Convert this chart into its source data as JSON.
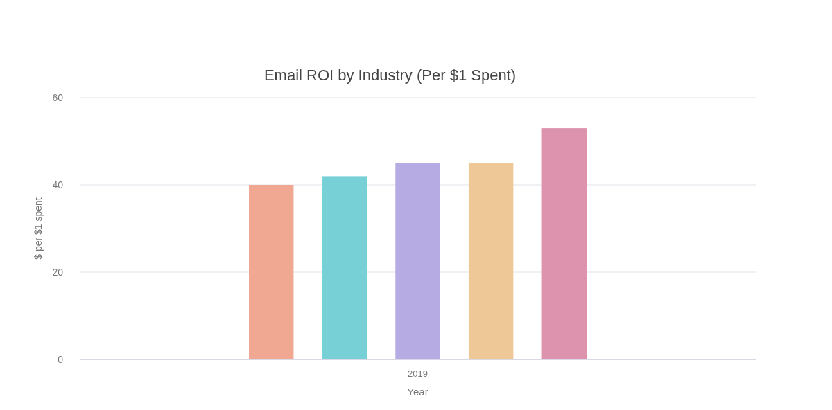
{
  "chart_data": {
    "type": "bar",
    "title": "Email ROI by Industry (Per $1 Spent)",
    "xlabel": "Year",
    "ylabel": "$ per $1 spent",
    "categories": [
      "2019"
    ],
    "series": [
      {
        "color": "#f0a893",
        "values": [
          40
        ]
      },
      {
        "color": "#76d0d6",
        "values": [
          42
        ]
      },
      {
        "color": "#b7abe4",
        "values": [
          45
        ]
      },
      {
        "color": "#eec896",
        "values": [
          45
        ]
      },
      {
        "color": "#dd93ae",
        "values": [
          53
        ]
      }
    ],
    "ylim": [
      0,
      60
    ],
    "yticks": [
      0,
      20,
      40,
      60
    ],
    "grid": "y"
  }
}
